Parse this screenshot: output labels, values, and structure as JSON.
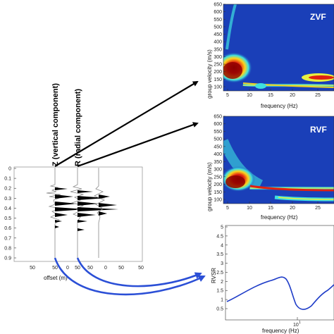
{
  "seismogram": {
    "y_ticks": [
      "0",
      "0.1",
      "0.2",
      "0.3",
      "0.4",
      "0.5",
      "0.6",
      "0.7",
      "0.8",
      "0.9"
    ],
    "x_ticks": [
      "50",
      "50",
      "0",
      "50",
      "50",
      "0",
      "50",
      "50"
    ],
    "xlabel": "offset (m)",
    "z_label": "Z (vertical component)",
    "r_label": "R (radial component)"
  },
  "zvf": {
    "title": "ZVF",
    "ylabel": "group velocity (m/s)",
    "xlabel": "frequency (Hz)",
    "y_ticks": [
      "650",
      "600",
      "550",
      "500",
      "450",
      "400",
      "350",
      "300",
      "250",
      "200",
      "150",
      "100"
    ],
    "x_ticks": [
      "5",
      "10",
      "15",
      "20",
      "25"
    ]
  },
  "rvf": {
    "title": "RVF",
    "ylabel": "group velocity (m/s)",
    "xlabel": "frequency (Hz)",
    "y_ticks": [
      "650",
      "600",
      "550",
      "500",
      "450",
      "400",
      "350",
      "300",
      "250",
      "200",
      "150",
      "100"
    ],
    "x_ticks": [
      "5",
      "10",
      "15",
      "20",
      "25"
    ]
  },
  "rvsr": {
    "ylabel": "RVSR",
    "xlabel": "frequency (Hz)",
    "y_ticks": [
      "5",
      "4.5",
      "4",
      "3.5",
      "3",
      "2.5",
      "2",
      "1.5",
      "1",
      "0.5"
    ],
    "x_tick": "10",
    "x_tick_exp": "1"
  },
  "colors": {
    "map_background": "#1a3fb8",
    "arrow_black": "#000000",
    "arrow_blue": "#2b4fd6",
    "curve_blue": "#1e3cc8"
  }
}
